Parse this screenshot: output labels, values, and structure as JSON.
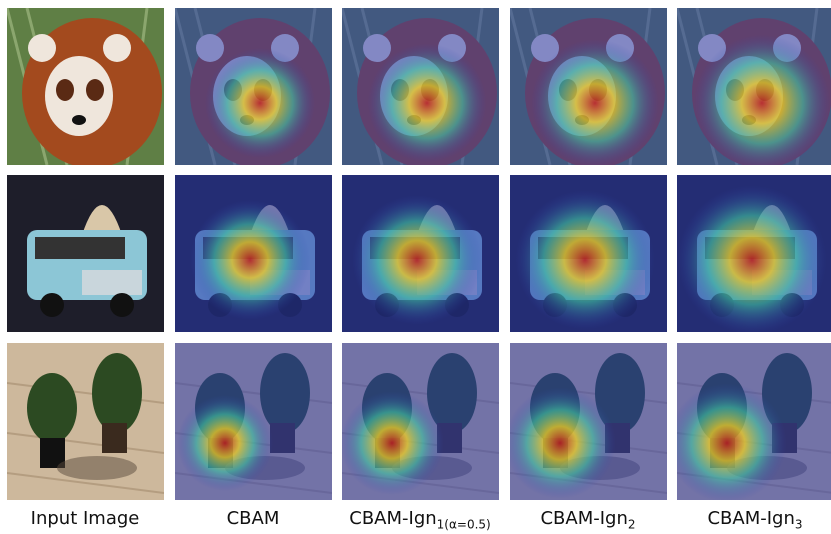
{
  "columns": [
    {
      "label": "Input Image"
    },
    {
      "label": "CBAM"
    },
    {
      "label": "CBAM-Ign",
      "subscript": "1(α=0.5)"
    },
    {
      "label": "CBAM-Ign",
      "subscript": "2"
    },
    {
      "label": "CBAM-Ign",
      "subscript": "3"
    }
  ]
}
